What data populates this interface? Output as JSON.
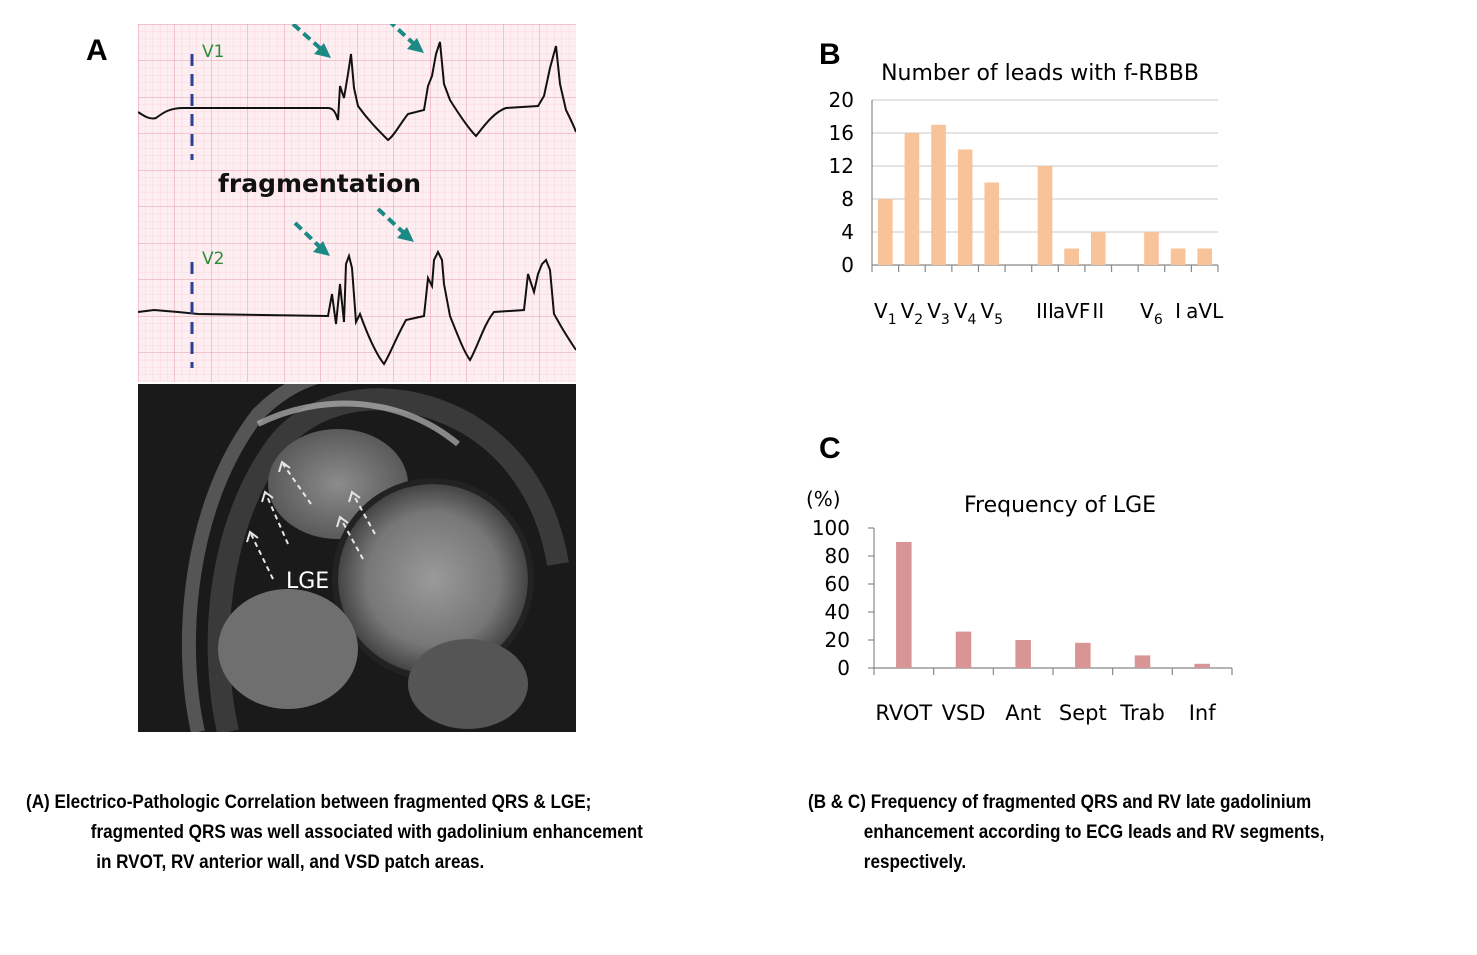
{
  "panelA": {
    "letter": "A",
    "lead_top": "V1",
    "lead_bottom": "V2",
    "fragmentation_label": "fragmentation",
    "lge_label": "LGE"
  },
  "panelB": {
    "letter": "B"
  },
  "panelC": {
    "letter": "C"
  },
  "captions": {
    "left": [
      "(A) Electrico-Pathologic Correlation between fragmented QRS & LGE;",
      "fragmented QRS was well associated with gadolinium enhancement",
      "in RVOT, RV anterior wall, and VSD patch areas."
    ],
    "right": [
      "(B & C) Frequency of fragmented QRS and RV late gadolinium",
      "enhancement  according to ECG leads and RV segments,",
      "respectively."
    ]
  },
  "colors": {
    "ecg_grid_minor": "#f5c6cf",
    "ecg_grid_major": "#ec9aaa",
    "ecg_background": "#fdeef1",
    "lead_label": "#2e8b3a",
    "arrow_teal": "#1b8a85",
    "marker_blue": "#2a3f8f",
    "bar_b": "#f9c39a",
    "bar_c": "#d99595"
  },
  "chart_data": [
    {
      "type": "bar",
      "title": "Number of leads with f-RBBB",
      "categories": [
        "V1",
        "V2",
        "V3",
        "V4",
        "V5",
        "III",
        "aVF",
        "II",
        "V6",
        "I",
        "aVL"
      ],
      "category_groups": [
        [
          "V1",
          "V2",
          "V3",
          "V4",
          "V5"
        ],
        [
          "III",
          "aVF",
          "II"
        ],
        [
          "V6",
          "I",
          "aVL"
        ]
      ],
      "values": [
        8,
        16,
        17,
        14,
        10,
        12,
        2,
        4,
        4,
        2,
        2
      ],
      "ylim": [
        0,
        20
      ],
      "yticks": [
        0,
        4,
        8,
        12,
        16,
        20
      ],
      "xlabel": "",
      "ylabel": "",
      "grid": true,
      "color": "#f9c39a"
    },
    {
      "type": "bar",
      "title": "Frequency of LGE",
      "categories": [
        "RVOT",
        "VSD",
        "Ant",
        "Sept",
        "Trab",
        "Inf"
      ],
      "values": [
        90,
        26,
        20,
        18,
        9,
        3
      ],
      "ylim": [
        0,
        100
      ],
      "yticks": [
        0,
        20,
        40,
        60,
        80,
        100
      ],
      "ylabel": "(%)",
      "xlabel": "",
      "grid": false,
      "color": "#d99595"
    }
  ]
}
